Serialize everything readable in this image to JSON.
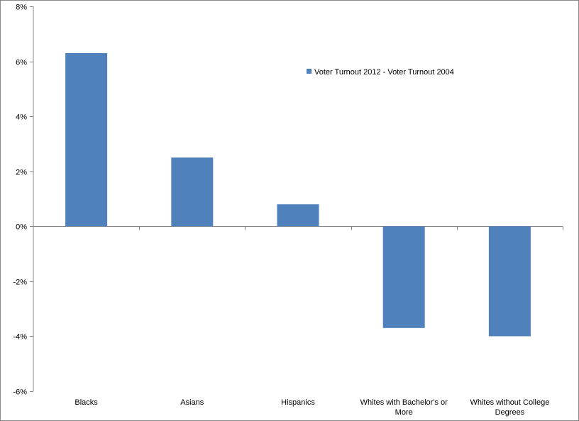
{
  "chart_data": {
    "type": "bar",
    "categories": [
      [
        "Blacks"
      ],
      [
        "Asians"
      ],
      [
        "Hispanics"
      ],
      [
        "Whites with Bachelor's or",
        "More"
      ],
      [
        "Whites without College",
        "Degrees"
      ]
    ],
    "series": [
      {
        "name": "Voter Turnout 2012 - Voter Turnout 2004",
        "values": [
          6.3,
          2.5,
          0.8,
          -3.7,
          -4.0
        ],
        "color": "#4f81bd"
      }
    ],
    "ylim": [
      -6,
      8
    ],
    "yticks": [
      -6,
      -4,
      -2,
      0,
      2,
      4,
      6,
      8
    ],
    "ytick_format": "percent",
    "grid": false,
    "legend_position": "top-right"
  }
}
